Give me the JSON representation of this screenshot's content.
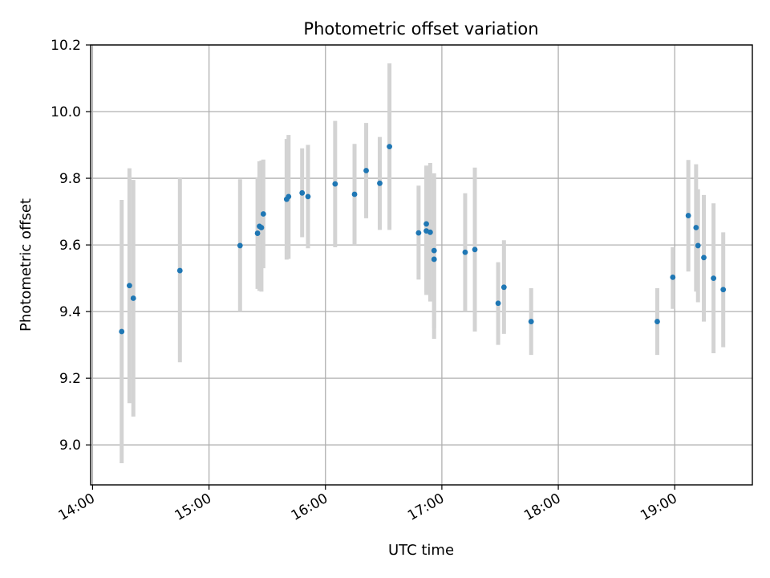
{
  "chart_data": {
    "type": "scatter",
    "title": "Photometric offset variation",
    "xlabel": "UTC time",
    "ylabel": "Photometric offset",
    "x_ticks": [
      "14:00",
      "15:00",
      "16:00",
      "17:00",
      "18:00",
      "19:00"
    ],
    "y_ticks": [
      "9.0",
      "9.2",
      "9.4",
      "9.6",
      "9.8",
      "10.0",
      "10.2"
    ],
    "xlim": [
      "13:59",
      "19:40"
    ],
    "ylim": [
      8.88,
      10.2
    ],
    "grid": true,
    "marker_color": "#1f77b4",
    "errorbar_color": "#d3d3d3",
    "points": [
      {
        "t": "14:15",
        "y": 9.34,
        "lo": 8.945,
        "hi": 9.735
      },
      {
        "t": "14:19",
        "y": 9.478,
        "lo": 9.125,
        "hi": 9.83
      },
      {
        "t": "14:21",
        "y": 9.44,
        "lo": 9.085,
        "hi": 9.795
      },
      {
        "t": "14:45",
        "y": 9.523,
        "lo": 9.248,
        "hi": 9.8
      },
      {
        "t": "15:16",
        "y": 9.598,
        "lo": 9.4,
        "hi": 9.797
      },
      {
        "t": "15:25",
        "y": 9.635,
        "lo": 9.468,
        "hi": 9.803
      },
      {
        "t": "15:26",
        "y": 9.656,
        "lo": 9.462,
        "hi": 9.851
      },
      {
        "t": "15:27",
        "y": 9.652,
        "lo": 9.46,
        "hi": 9.853
      },
      {
        "t": "15:28",
        "y": 9.693,
        "lo": 9.53,
        "hi": 9.856
      },
      {
        "t": "15:40",
        "y": 9.737,
        "lo": 9.556,
        "hi": 9.918
      },
      {
        "t": "15:41",
        "y": 9.745,
        "lo": 9.558,
        "hi": 9.93
      },
      {
        "t": "15:48",
        "y": 9.756,
        "lo": 9.623,
        "hi": 9.89
      },
      {
        "t": "15:51",
        "y": 9.745,
        "lo": 9.59,
        "hi": 9.9
      },
      {
        "t": "16:05",
        "y": 9.783,
        "lo": 9.593,
        "hi": 9.972
      },
      {
        "t": "16:15",
        "y": 9.752,
        "lo": 9.6,
        "hi": 9.903
      },
      {
        "t": "16:21",
        "y": 9.823,
        "lo": 9.68,
        "hi": 9.966
      },
      {
        "t": "16:28",
        "y": 9.785,
        "lo": 9.645,
        "hi": 9.924
      },
      {
        "t": "16:33",
        "y": 9.895,
        "lo": 9.645,
        "hi": 10.145
      },
      {
        "t": "16:48",
        "y": 9.636,
        "lo": 9.496,
        "hi": 9.778
      },
      {
        "t": "16:52",
        "y": 9.642,
        "lo": 9.45,
        "hi": 9.835
      },
      {
        "t": "16:52",
        "y": 9.663,
        "lo": 9.458,
        "hi": 9.838
      },
      {
        "t": "16:54",
        "y": 9.638,
        "lo": 9.43,
        "hi": 9.846
      },
      {
        "t": "16:56",
        "y": 9.583,
        "lo": 9.35,
        "hi": 9.815
      },
      {
        "t": "16:56",
        "y": 9.557,
        "lo": 9.318,
        "hi": 9.797
      },
      {
        "t": "17:12",
        "y": 9.578,
        "lo": 9.4,
        "hi": 9.755
      },
      {
        "t": "17:17",
        "y": 9.586,
        "lo": 9.34,
        "hi": 9.832
      },
      {
        "t": "17:29",
        "y": 9.425,
        "lo": 9.3,
        "hi": 9.548
      },
      {
        "t": "17:32",
        "y": 9.473,
        "lo": 9.333,
        "hi": 9.614
      },
      {
        "t": "17:46",
        "y": 9.37,
        "lo": 9.27,
        "hi": 9.47
      },
      {
        "t": "18:51",
        "y": 9.37,
        "lo": 9.27,
        "hi": 9.47
      },
      {
        "t": "18:59",
        "y": 9.503,
        "lo": 9.408,
        "hi": 9.593
      },
      {
        "t": "19:07",
        "y": 9.688,
        "lo": 9.52,
        "hi": 9.855
      },
      {
        "t": "19:11",
        "y": 9.652,
        "lo": 9.46,
        "hi": 9.842
      },
      {
        "t": "19:12",
        "y": 9.598,
        "lo": 9.428,
        "hi": 9.767
      },
      {
        "t": "19:15",
        "y": 9.562,
        "lo": 9.37,
        "hi": 9.75
      },
      {
        "t": "19:20",
        "y": 9.5,
        "lo": 9.275,
        "hi": 9.725
      },
      {
        "t": "19:25",
        "y": 9.466,
        "lo": 9.293,
        "hi": 9.638
      }
    ]
  }
}
